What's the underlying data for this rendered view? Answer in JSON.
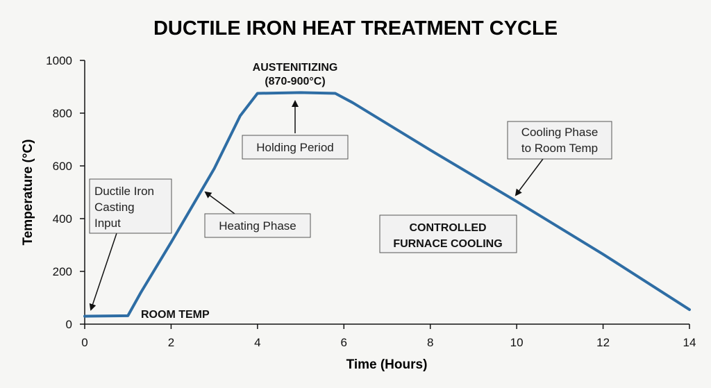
{
  "chart_data": {
    "type": "line",
    "title": "DUCTILE IRON HEAT TREATMENT CYCLE",
    "xlabel": "Time (Hours)",
    "ylabel": "Temperature (°C)",
    "xlim": [
      0,
      14
    ],
    "ylim": [
      0,
      1000
    ],
    "xticks": [
      "0",
      "2",
      "4",
      "6",
      "8",
      "10",
      "12",
      "14"
    ],
    "yticks": [
      "0",
      "200",
      "400",
      "600",
      "800",
      "1000"
    ],
    "grid": false,
    "color": "#2e6da4",
    "series": [
      {
        "x": [
          0,
          1.0,
          1.3,
          2.0,
          3.0,
          3.6,
          4.0,
          5.0,
          5.8,
          6.2,
          8.0,
          10.0,
          12.0,
          14.0
        ],
        "y": [
          30,
          32,
          120,
          310,
          590,
          790,
          875,
          878,
          875,
          840,
          660,
          465,
          265,
          55
        ]
      }
    ],
    "annotations": {
      "austenitizing_line1": "AUSTENITIZING",
      "austenitizing_line2": "(870-900°C)",
      "holding": "Holding Period",
      "heating": "Heating Phase",
      "input_line1": "Ductile Iron",
      "input_line2": "Casting",
      "input_line3": "Input",
      "cooling_line1": "Cooling Phase",
      "cooling_line2": "to Room Temp",
      "controlled_line1": "CONTROLLED",
      "controlled_line2": "FURNACE COOLING",
      "room_temp": "ROOM TEMP"
    }
  }
}
